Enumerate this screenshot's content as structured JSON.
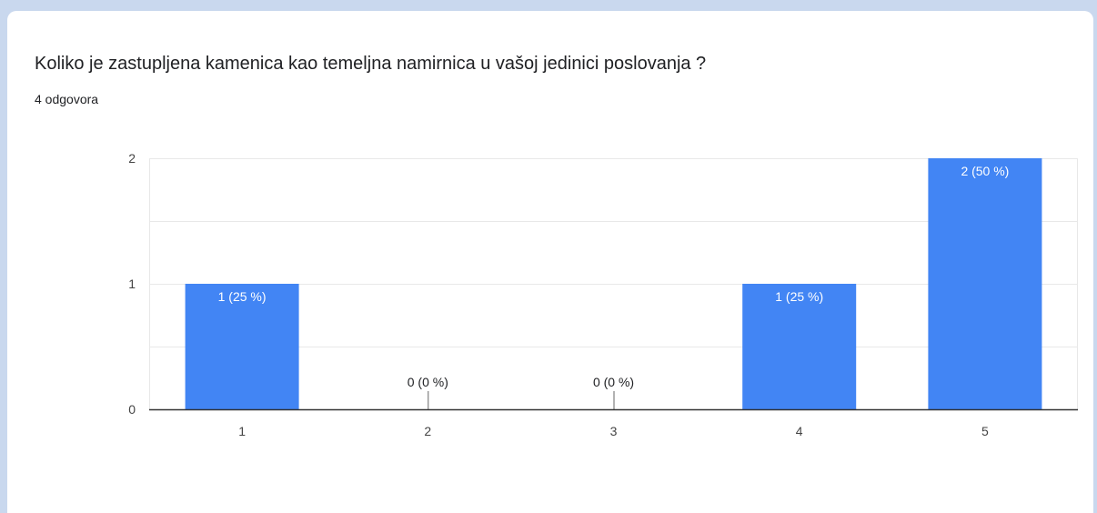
{
  "question": {
    "title": "Koliko je zastupljena kamenica kao temeljna namirnica u vašoj jedinici poslovanja ?",
    "response_count": "4 odgovora"
  },
  "colors": {
    "bar": "#4285f4",
    "grid": "#e8e8e8",
    "axis": "#333333",
    "label_inside": "#ffffff",
    "label_outside": "#202124"
  },
  "chart_data": {
    "type": "bar",
    "categories": [
      "1",
      "2",
      "3",
      "4",
      "5"
    ],
    "values": [
      1,
      0,
      0,
      1,
      2
    ],
    "data_labels": [
      "1 (25 %)",
      "0 (0 %)",
      "0 (0 %)",
      "1 (25 %)",
      "2 (50 %)"
    ],
    "ylim": [
      0,
      2
    ],
    "yticks": [
      "0",
      "1",
      "2"
    ],
    "gridlines": [
      0,
      0.5,
      1,
      1.5,
      2
    ],
    "grid": true,
    "xlabel": "",
    "ylabel": ""
  }
}
